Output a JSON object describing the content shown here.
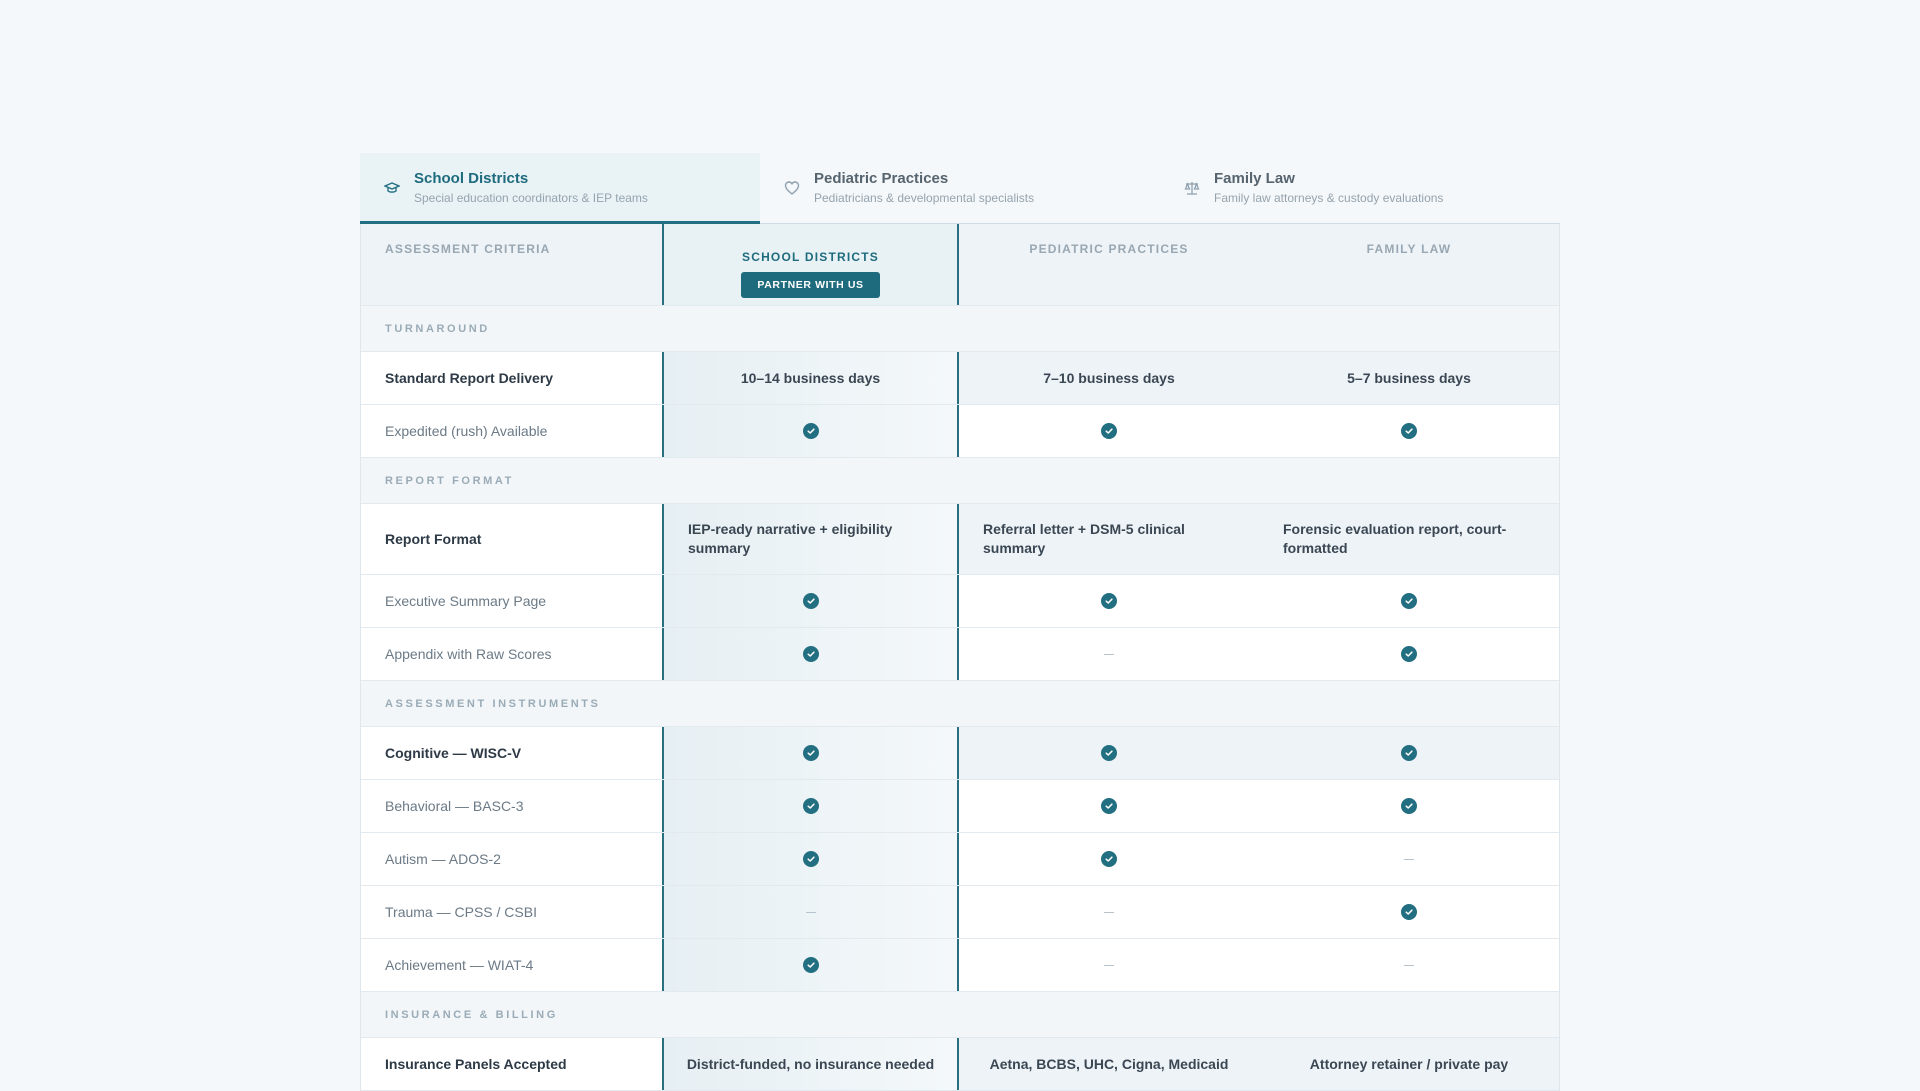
{
  "tabs": [
    {
      "title": "School Districts",
      "subtitle": "Special education coordinators & IEP teams",
      "icon": "graduation-cap-icon",
      "active": true
    },
    {
      "title": "Pediatric Practices",
      "subtitle": "Pediatricians & developmental specialists",
      "icon": "heart-icon",
      "active": false
    },
    {
      "title": "Family Law",
      "subtitle": "Family law attorneys & custody evaluations",
      "icon": "scales-icon",
      "active": false
    }
  ],
  "table": {
    "headers": [
      "ASSESSMENT CRITERIA",
      "SCHOOL DISTRICTS",
      "PEDIATRIC PRACTICES",
      "FAMILY LAW"
    ],
    "partner_label": "PARTNER WITH US",
    "sections": [
      {
        "label": "TURNAROUND"
      },
      {
        "label": "REPORT FORMAT"
      },
      {
        "label": "ASSESSMENT INSTRUMENTS"
      },
      {
        "label": "INSURANCE & BILLING"
      }
    ],
    "rows": {
      "standard_delivery": {
        "label": "Standard Report Delivery",
        "values": [
          "10–14 business days",
          "7–10 business days",
          "5–7 business days"
        ]
      },
      "expedited": {
        "label": "Expedited (rush) Available",
        "values": [
          "check",
          "check",
          "check"
        ]
      },
      "report_format": {
        "label": "Report Format",
        "values": [
          "IEP-ready narrative + eligibility summary",
          "Referral letter + DSM-5 clinical summary",
          "Forensic evaluation report, court-formatted"
        ]
      },
      "exec_summary": {
        "label": "Executive Summary Page",
        "values": [
          "check",
          "check",
          "check"
        ]
      },
      "appendix": {
        "label": "Appendix with Raw Scores",
        "values": [
          "check",
          "—",
          "check"
        ]
      },
      "wisc": {
        "label": "Cognitive — WISC-V",
        "values": [
          "check",
          "check",
          "check"
        ]
      },
      "basc": {
        "label": "Behavioral — BASC-3",
        "values": [
          "check",
          "check",
          "check"
        ]
      },
      "ados": {
        "label": "Autism — ADOS-2",
        "values": [
          "check",
          "check",
          "—"
        ]
      },
      "trauma": {
        "label": "Trauma — CPSS / CSBI",
        "values": [
          "—",
          "—",
          "check"
        ]
      },
      "wiat": {
        "label": "Achievement — WIAT-4",
        "values": [
          "check",
          "—",
          "—"
        ]
      },
      "insurance": {
        "label": "Insurance Panels Accepted",
        "values": [
          "District-funded, no insurance needed",
          "Aetna, BCBS, UHC, Cigna, Medicaid",
          "Attorney retainer / private pay"
        ]
      }
    }
  },
  "colors": {
    "accent": "#1f6b7e",
    "background": "#f5f8fa"
  }
}
